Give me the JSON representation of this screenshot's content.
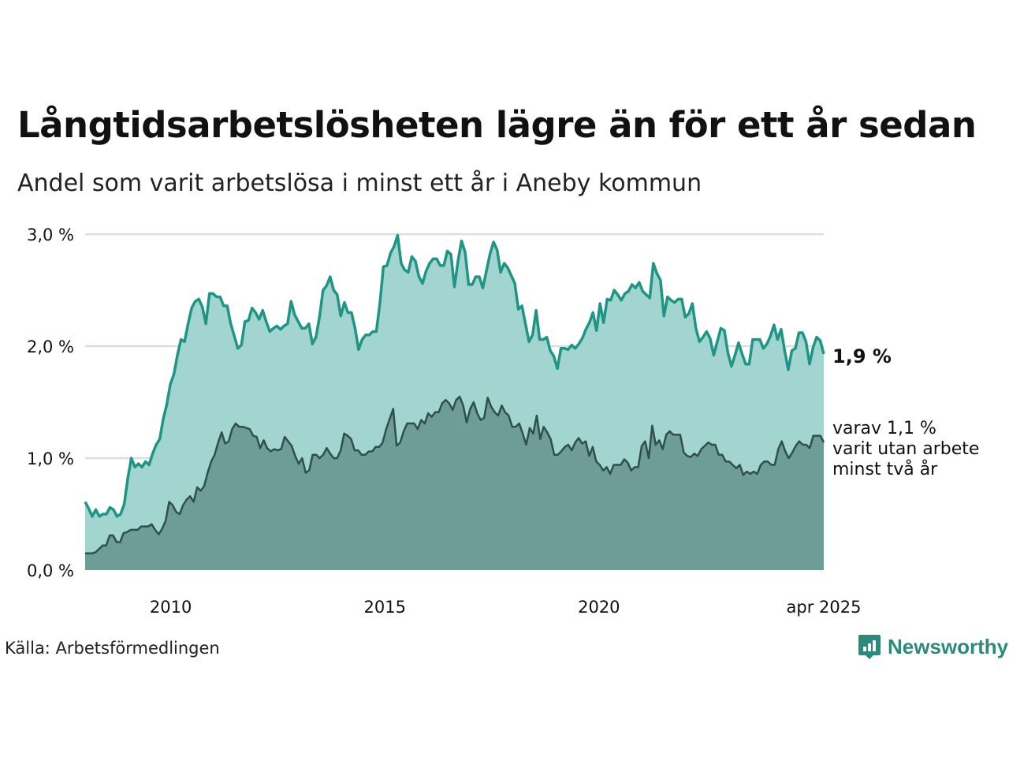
{
  "title": "Långtidsarbetslösheten lägre än för ett år sedan",
  "subtitle": "Andel som varit arbetslösa i minst ett år i Aneby kommun",
  "source": "Källa: Arbetsförmedlingen",
  "brand": "Newsworthy",
  "colors": {
    "series1_line": "#1e9585",
    "series1_fill": "#a3d5d0",
    "series2_line": "#2f4f4a",
    "series2_fill": "#6e9d97",
    "grid": "#dddddd",
    "brand": "#2b8a7a"
  },
  "chart_data": {
    "type": "area",
    "ylim": [
      0,
      3.0
    ],
    "yticks": [
      0,
      1,
      2,
      3
    ],
    "ytick_labels": [
      "0,0 %",
      "1,0 %",
      "2,0 %",
      "3,0 %"
    ],
    "xlim": [
      "2008-01",
      "2025-04"
    ],
    "xticks": [
      {
        "date": "2010-01",
        "label": "2010"
      },
      {
        "date": "2015-01",
        "label": "2015"
      },
      {
        "date": "2020-01",
        "label": "2020"
      },
      {
        "date": "2025-04",
        "label": "apr 2025"
      }
    ],
    "end_label_main": "1,9 %",
    "end_label_sub": [
      "varav 1,1 %",
      "varit utan arbete",
      "minst två år"
    ],
    "series": [
      {
        "values": [
          0.61,
          0.55,
          0.48,
          0.54,
          0.48,
          0.5,
          0.5,
          0.56,
          0.54,
          0.48,
          0.5,
          0.59,
          0.82,
          1.0,
          0.92,
          0.95,
          0.92,
          0.97,
          0.94,
          1.04,
          1.12,
          1.17,
          1.35,
          1.48,
          1.66,
          1.75,
          1.92,
          2.06,
          2.04,
          2.2,
          2.34,
          2.4,
          2.42,
          2.35,
          2.2,
          2.47,
          2.47,
          2.44,
          2.44,
          2.36,
          2.36,
          2.2,
          2.09,
          1.98,
          2.01,
          2.22,
          2.23,
          2.34,
          2.3,
          2.24,
          2.32,
          2.22,
          2.13,
          2.16,
          2.18,
          2.15,
          2.18,
          2.2,
          2.4,
          2.28,
          2.22,
          2.16,
          2.16,
          2.2,
          2.02,
          2.08,
          2.26,
          2.5,
          2.54,
          2.62,
          2.5,
          2.46,
          2.27,
          2.39,
          2.3,
          2.3,
          2.16,
          1.97,
          2.06,
          2.1,
          2.1,
          2.13,
          2.13,
          2.38,
          2.71,
          2.72,
          2.83,
          2.89,
          2.99,
          2.74,
          2.68,
          2.66,
          2.8,
          2.76,
          2.62,
          2.56,
          2.67,
          2.74,
          2.78,
          2.78,
          2.72,
          2.72,
          2.85,
          2.82,
          2.53,
          2.76,
          2.94,
          2.84,
          2.55,
          2.55,
          2.62,
          2.62,
          2.52,
          2.67,
          2.82,
          2.93,
          2.86,
          2.66,
          2.74,
          2.7,
          2.63,
          2.56,
          2.33,
          2.36,
          2.2,
          2.04,
          2.1,
          2.32,
          2.06,
          2.06,
          2.08,
          1.96,
          1.91,
          1.8,
          1.98,
          1.98,
          1.97,
          2.01,
          1.98,
          2.02,
          2.07,
          2.15,
          2.21,
          2.3,
          2.14,
          2.38,
          2.21,
          2.42,
          2.41,
          2.5,
          2.46,
          2.41,
          2.47,
          2.49,
          2.55,
          2.52,
          2.57,
          2.49,
          2.46,
          2.43,
          2.74,
          2.65,
          2.59,
          2.27,
          2.44,
          2.41,
          2.39,
          2.42,
          2.42,
          2.26,
          2.29,
          2.38,
          2.16,
          2.04,
          2.08,
          2.13,
          2.07,
          1.92,
          2.04,
          2.16,
          2.14,
          1.94,
          1.82,
          1.92,
          2.03,
          1.93,
          1.84,
          1.84,
          2.06,
          2.06,
          2.06,
          1.98,
          2.02,
          2.09,
          2.19,
          2.06,
          2.15,
          1.96,
          1.79,
          1.96,
          1.98,
          2.12,
          2.12,
          2.04,
          1.84,
          1.99,
          2.08,
          2.05,
          1.93
        ]
      },
      {
        "values": [
          0.15,
          0.15,
          0.15,
          0.16,
          0.19,
          0.22,
          0.22,
          0.31,
          0.31,
          0.25,
          0.25,
          0.33,
          0.34,
          0.36,
          0.36,
          0.36,
          0.39,
          0.39,
          0.39,
          0.41,
          0.36,
          0.32,
          0.37,
          0.44,
          0.61,
          0.58,
          0.52,
          0.5,
          0.58,
          0.63,
          0.66,
          0.61,
          0.74,
          0.71,
          0.75,
          0.87,
          0.97,
          1.03,
          1.14,
          1.23,
          1.13,
          1.15,
          1.26,
          1.31,
          1.28,
          1.28,
          1.27,
          1.26,
          1.2,
          1.19,
          1.09,
          1.16,
          1.09,
          1.06,
          1.08,
          1.07,
          1.08,
          1.19,
          1.15,
          1.11,
          1.02,
          0.95,
          1.0,
          0.87,
          0.89,
          1.03,
          1.03,
          1.0,
          1.03,
          1.09,
          1.04,
          1.0,
          1.0,
          1.07,
          1.22,
          1.2,
          1.17,
          1.07,
          1.07,
          1.03,
          1.03,
          1.06,
          1.06,
          1.1,
          1.1,
          1.14,
          1.26,
          1.35,
          1.44,
          1.11,
          1.14,
          1.24,
          1.31,
          1.31,
          1.31,
          1.26,
          1.34,
          1.31,
          1.4,
          1.37,
          1.41,
          1.41,
          1.49,
          1.52,
          1.49,
          1.43,
          1.52,
          1.55,
          1.47,
          1.32,
          1.44,
          1.5,
          1.4,
          1.34,
          1.36,
          1.54,
          1.46,
          1.41,
          1.38,
          1.47,
          1.41,
          1.38,
          1.28,
          1.28,
          1.31,
          1.22,
          1.12,
          1.27,
          1.22,
          1.38,
          1.17,
          1.28,
          1.23,
          1.17,
          1.03,
          1.03,
          1.06,
          1.1,
          1.12,
          1.07,
          1.14,
          1.18,
          1.13,
          1.15,
          1.02,
          1.1,
          0.97,
          0.94,
          0.89,
          0.92,
          0.86,
          0.94,
          0.94,
          0.94,
          0.99,
          0.96,
          0.89,
          0.92,
          0.92,
          1.11,
          1.15,
          1.0,
          1.29,
          1.12,
          1.16,
          1.08,
          1.21,
          1.24,
          1.21,
          1.21,
          1.21,
          1.05,
          1.02,
          1.01,
          1.04,
          1.02,
          1.08,
          1.11,
          1.14,
          1.12,
          1.12,
          1.03,
          1.03,
          0.97,
          0.97,
          0.94,
          0.91,
          0.94,
          0.85,
          0.88,
          0.86,
          0.88,
          0.86,
          0.94,
          0.97,
          0.97,
          0.94,
          0.94,
          1.08,
          1.15,
          1.06,
          1.0,
          1.05,
          1.11,
          1.15,
          1.12,
          1.12,
          1.09,
          1.2,
          1.2,
          1.2,
          1.14
        ]
      }
    ]
  }
}
